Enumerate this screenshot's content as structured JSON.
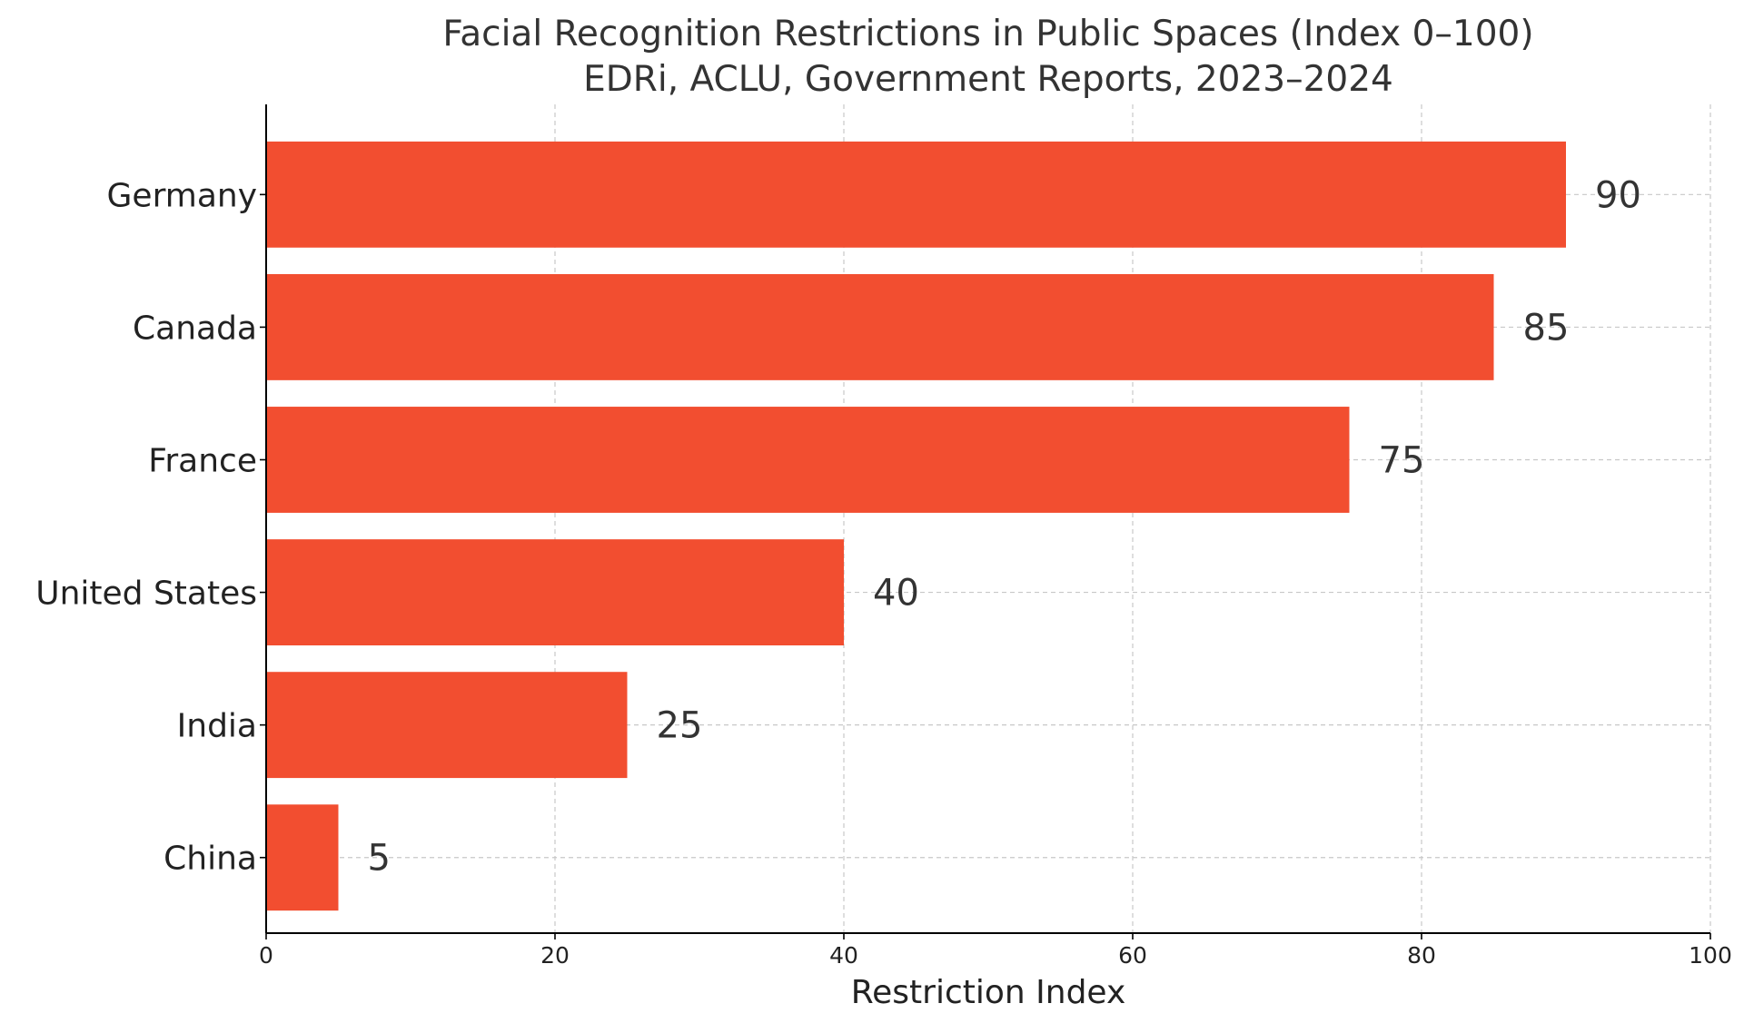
{
  "chart_data": {
    "type": "bar",
    "orientation": "horizontal",
    "title": "Facial Recognition Restrictions in Public Spaces (Index 0–100)",
    "subtitle": "EDRi, ACLU, Government Reports, 2023–2024",
    "xlabel": "Restriction Index",
    "ylabel": "",
    "categories": [
      "Germany",
      "Canada",
      "France",
      "United States",
      "India",
      "China"
    ],
    "values": [
      90,
      85,
      75,
      40,
      25,
      5
    ],
    "xlim": [
      0,
      100
    ],
    "xticks": [
      0,
      20,
      40,
      60,
      80,
      100
    ],
    "grid": true,
    "legend": false,
    "colors": {
      "bar": "#f24e30"
    }
  }
}
